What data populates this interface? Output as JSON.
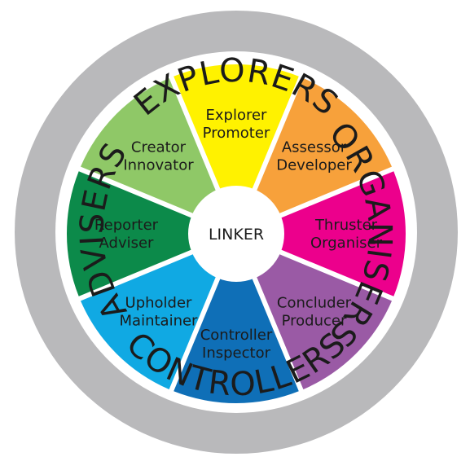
{
  "outer_ring": {
    "color": "#b9b9bb",
    "labels": [
      {
        "id": "explorers",
        "text": "EXPLORERS"
      },
      {
        "id": "organisers",
        "text": "ORGANISERS"
      },
      {
        "id": "controllers",
        "text": "CONTROLLERS"
      },
      {
        "id": "advisers",
        "text": "ADVISERS"
      }
    ]
  },
  "segments": [
    {
      "id": "explorer-promoter",
      "lines": [
        "Explorer",
        "Promoter"
      ],
      "color": "#fff200"
    },
    {
      "id": "assessor-developer",
      "lines": [
        "Assessor",
        "Developer"
      ],
      "color": "#f7a13b"
    },
    {
      "id": "thruster-organiser",
      "lines": [
        "Thruster",
        "Organiser"
      ],
      "color": "#ec008c"
    },
    {
      "id": "concluder-producer",
      "lines": [
        "Concluder",
        "Producer"
      ],
      "color": "#9a5aa5"
    },
    {
      "id": "controller-inspector",
      "lines": [
        "Controller",
        "Inspector"
      ],
      "color": "#0f6fb7"
    },
    {
      "id": "upholder-maintainer",
      "lines": [
        "Upholder",
        "Maintainer"
      ],
      "color": "#10a9e3"
    },
    {
      "id": "reporter-adviser",
      "lines": [
        "Reporter",
        "Adviser"
      ],
      "color": "#0c8a4a"
    },
    {
      "id": "creator-innovator",
      "lines": [
        "Creator",
        "Innovator"
      ],
      "color": "#8fc867"
    }
  ],
  "center": {
    "label": "LINKER",
    "color": "#ffffff"
  }
}
